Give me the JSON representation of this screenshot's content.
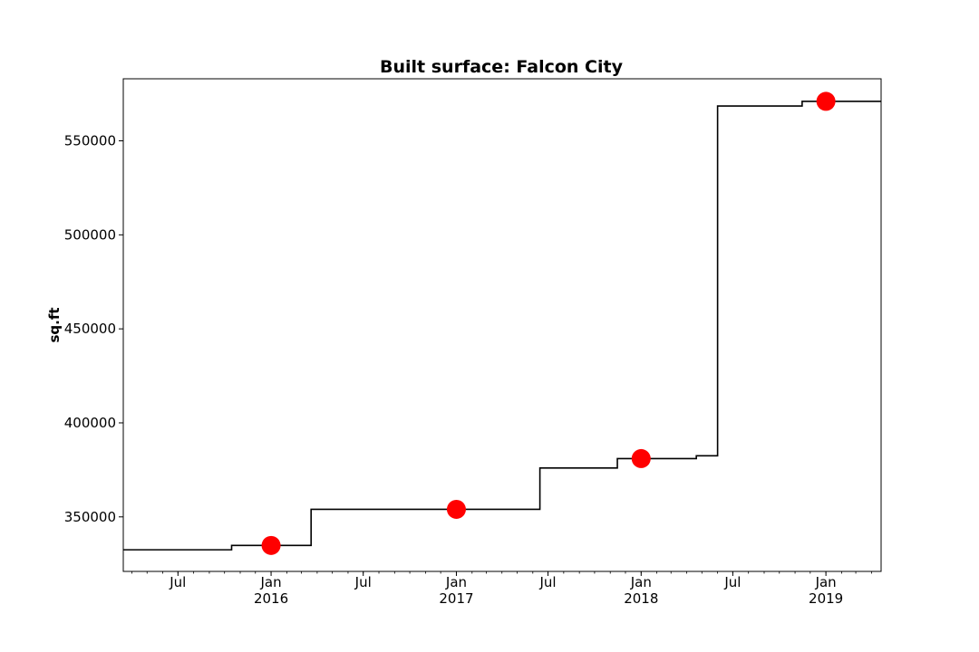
{
  "chart_data": {
    "type": "line",
    "title": "Built surface: Falcon City",
    "xlabel": "",
    "ylabel": "sq.ft",
    "xlim": [
      "2015-03-15",
      "2019-04-20"
    ],
    "ylim": [
      321000,
      583000
    ],
    "grid": false,
    "yticks": [
      350000,
      400000,
      450000,
      500000,
      550000
    ],
    "xticks": [
      {
        "date": "2015-07-01",
        "label": "Jul",
        "sublabel": ""
      },
      {
        "date": "2016-01-01",
        "label": "Jan",
        "sublabel": "2016"
      },
      {
        "date": "2016-07-01",
        "label": "Jul",
        "sublabel": ""
      },
      {
        "date": "2017-01-01",
        "label": "Jan",
        "sublabel": "2017"
      },
      {
        "date": "2017-07-01",
        "label": "Jul",
        "sublabel": ""
      },
      {
        "date": "2018-01-01",
        "label": "Jan",
        "sublabel": "2018"
      },
      {
        "date": "2018-07-01",
        "label": "Jul",
        "sublabel": ""
      },
      {
        "date": "2019-01-01",
        "label": "Jan",
        "sublabel": "2019"
      }
    ],
    "series": [
      {
        "style": "step",
        "color": "#000000",
        "points": [
          {
            "x": "2015-03-15",
            "y": 332500
          },
          {
            "x": "2015-10-15",
            "y": 334800
          },
          {
            "x": "2016-03-20",
            "y": 354000
          },
          {
            "x": "2017-06-15",
            "y": 376000
          },
          {
            "x": "2017-11-15",
            "y": 381000
          },
          {
            "x": "2018-04-20",
            "y": 382500
          },
          {
            "x": "2018-06-01",
            "y": 568500
          },
          {
            "x": "2018-11-15",
            "y": 571000
          },
          {
            "x": "2019-04-20",
            "y": 571000
          }
        ]
      },
      {
        "style": "markers",
        "color": "#ff0000",
        "points": [
          {
            "x": "2016-01-01",
            "y": 334800
          },
          {
            "x": "2017-01-01",
            "y": 354000
          },
          {
            "x": "2018-01-01",
            "y": 381000
          },
          {
            "x": "2019-01-01",
            "y": 571000
          }
        ]
      }
    ]
  }
}
